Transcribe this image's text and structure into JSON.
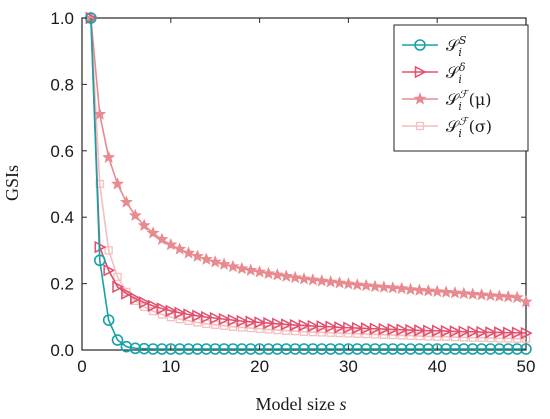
{
  "chart_data": {
    "type": "line",
    "xlabel_prefix": "Model size ",
    "xlabel_var": "s",
    "ylabel": "GSIs",
    "xlim": [
      0,
      50
    ],
    "ylim": [
      0,
      1
    ],
    "xticks": [
      "0",
      "10",
      "20",
      "30",
      "40",
      "50"
    ],
    "yticks": [
      "0.0",
      "0.2",
      "0.4",
      "0.6",
      "0.8",
      "1.0"
    ],
    "legend_position": "top-right",
    "grid": false,
    "x": [
      1,
      2,
      3,
      4,
      5,
      6,
      7,
      8,
      9,
      10,
      11,
      12,
      13,
      14,
      15,
      16,
      17,
      18,
      19,
      20,
      21,
      22,
      23,
      24,
      25,
      26,
      27,
      28,
      29,
      30,
      31,
      32,
      33,
      34,
      35,
      36,
      37,
      38,
      39,
      40,
      41,
      42,
      43,
      44,
      45,
      46,
      47,
      48,
      49,
      50
    ],
    "series": [
      {
        "name_main": "𝒮",
        "name_sub": "i",
        "name_sup": "S",
        "name_tail": "",
        "color": "#17a2a6",
        "marker": "circle",
        "values": [
          1.0,
          0.27,
          0.09,
          0.03,
          0.01,
          0.005,
          0.004,
          0.003,
          0.003,
          0.003,
          0.003,
          0.003,
          0.003,
          0.003,
          0.003,
          0.003,
          0.003,
          0.003,
          0.003,
          0.003,
          0.003,
          0.003,
          0.003,
          0.003,
          0.003,
          0.003,
          0.003,
          0.003,
          0.003,
          0.003,
          0.003,
          0.003,
          0.003,
          0.003,
          0.003,
          0.003,
          0.003,
          0.003,
          0.003,
          0.003,
          0.003,
          0.003,
          0.003,
          0.003,
          0.003,
          0.003,
          0.003,
          0.003,
          0.003,
          0.003
        ]
      },
      {
        "name_main": "𝒮",
        "name_sub": "i",
        "name_sup": "δ",
        "name_tail": "",
        "color": "#e0506e",
        "marker": "triangle-right",
        "values": [
          1.0,
          0.31,
          0.24,
          0.19,
          0.17,
          0.155,
          0.143,
          0.133,
          0.125,
          0.118,
          0.112,
          0.107,
          0.103,
          0.099,
          0.096,
          0.093,
          0.09,
          0.087,
          0.085,
          0.083,
          0.081,
          0.079,
          0.077,
          0.075,
          0.074,
          0.072,
          0.071,
          0.07,
          0.068,
          0.067,
          0.066,
          0.065,
          0.064,
          0.063,
          0.062,
          0.061,
          0.06,
          0.059,
          0.058,
          0.058,
          0.057,
          0.056,
          0.055,
          0.055,
          0.054,
          0.053,
          0.053,
          0.052,
          0.052,
          0.051
        ]
      },
      {
        "name_main": "𝒮",
        "name_sub": "i",
        "name_sup": "ℱ",
        "name_tail": "(μ)",
        "color": "#e88a8f",
        "marker": "star",
        "values": [
          1.0,
          0.71,
          0.58,
          0.5,
          0.445,
          0.405,
          0.375,
          0.352,
          0.333,
          0.317,
          0.304,
          0.292,
          0.282,
          0.273,
          0.265,
          0.258,
          0.251,
          0.245,
          0.24,
          0.235,
          0.23,
          0.226,
          0.222,
          0.218,
          0.214,
          0.211,
          0.208,
          0.205,
          0.202,
          0.199,
          0.196,
          0.194,
          0.191,
          0.189,
          0.187,
          0.185,
          0.182,
          0.18,
          0.178,
          0.176,
          0.174,
          0.172,
          0.17,
          0.168,
          0.166,
          0.164,
          0.162,
          0.16,
          0.158,
          0.145
        ]
      },
      {
        "name_main": "𝒮",
        "name_sub": "i",
        "name_sup": "ℱ",
        "name_tail": "(σ)",
        "color": "#f5bfbf",
        "marker": "square",
        "values": [
          1.0,
          0.5,
          0.3,
          0.22,
          0.175,
          0.148,
          0.13,
          0.117,
          0.107,
          0.099,
          0.093,
          0.088,
          0.083,
          0.079,
          0.076,
          0.073,
          0.07,
          0.068,
          0.066,
          0.064,
          0.062,
          0.06,
          0.058,
          0.057,
          0.055,
          0.054,
          0.053,
          0.052,
          0.051,
          0.05,
          0.049,
          0.048,
          0.047,
          0.046,
          0.045,
          0.044,
          0.043,
          0.042,
          0.041,
          0.04,
          0.04,
          0.039,
          0.038,
          0.037,
          0.037,
          0.036,
          0.035,
          0.035,
          0.034,
          0.034
        ]
      }
    ]
  }
}
